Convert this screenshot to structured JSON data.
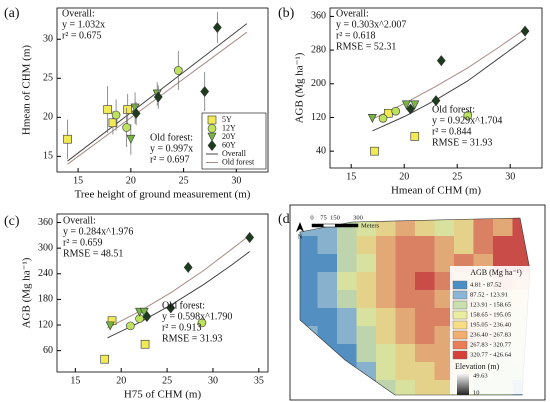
{
  "chart_data": [
    {
      "type": "scatter",
      "panel": "(a)",
      "xlabel": "Tree height of ground measurement (m)",
      "ylabel": "Hmean of CHM (m)",
      "xlim": [
        13,
        33
      ],
      "ylim": [
        13,
        34
      ],
      "xticks": [
        15,
        20,
        25,
        30
      ],
      "yticks": [
        15,
        20,
        25,
        30
      ],
      "legend": "lower right",
      "series": [
        {
          "name": "5Y",
          "color": "#f2ea55",
          "marker": "square",
          "x": [
            14,
            17.8,
            18.3,
            19.7
          ],
          "values": [
            17.2,
            21,
            19.3,
            21
          ],
          "errors": [
            2.5,
            3,
            1.5,
            2
          ]
        },
        {
          "name": "12Y",
          "color": "#bde25e",
          "marker": "circle",
          "x": [
            18.6,
            19.6,
            24.5
          ],
          "values": [
            20.3,
            18.7,
            26
          ],
          "errors": [
            2,
            2.5,
            2.5
          ]
        },
        {
          "name": "20Y",
          "color": "#79b447",
          "marker": "triangle",
          "x": [
            20,
            20.4,
            22.5
          ],
          "values": [
            17.2,
            21.2,
            23
          ],
          "errors": [
            2,
            2,
            1.5
          ]
        },
        {
          "name": "60Y",
          "color": "#1d3b1d",
          "marker": "diamond",
          "x": [
            20.5,
            22.6,
            27,
            28.2
          ],
          "values": [
            20.5,
            22.6,
            23.3,
            31.5
          ],
          "errors": [
            1.5,
            1.5,
            2.5,
            2
          ]
        }
      ],
      "fits": [
        {
          "name": "Overall",
          "color": "#444",
          "x": [
            14,
            31
          ],
          "values": [
            14.4,
            32
          ]
        },
        {
          "name": "Old forest",
          "color": "#a98b86",
          "x": [
            14,
            31
          ],
          "values": [
            14,
            30.9
          ]
        }
      ],
      "annotations": [
        "Overall:",
        "y = 1.032x",
        "r² = 0.675",
        "Old forest:",
        "y = 0.997x",
        "r² = 0.697"
      ]
    },
    {
      "type": "scatter",
      "panel": "(b)",
      "xlabel": "Hmean of CHM (m)",
      "ylabel": "AGB (Mg ha⁻¹)",
      "xlim": [
        13,
        33
      ],
      "ylim": [
        0,
        380
      ],
      "xticks": [
        15,
        20,
        25,
        30
      ],
      "yticks": [
        40,
        120,
        200,
        280,
        360
      ],
      "series": [
        {
          "name": "5Y",
          "color": "#f2ea55",
          "marker": "square",
          "x": [
            17.2,
            18.5,
            21
          ],
          "values": [
            40,
            130,
            75
          ]
        },
        {
          "name": "12Y",
          "color": "#bde25e",
          "marker": "circle",
          "x": [
            18,
            19.2,
            26
          ],
          "values": [
            118,
            135,
            125
          ]
        },
        {
          "name": "20Y",
          "color": "#79b447",
          "marker": "triangle",
          "x": [
            17,
            20.2,
            21
          ],
          "values": [
            118,
            150,
            150
          ]
        },
        {
          "name": "60Y",
          "color": "#1d3b1d",
          "marker": "diamond",
          "x": [
            20.6,
            23,
            23.5,
            31.4
          ],
          "values": [
            140,
            160,
            255,
            325
          ]
        }
      ],
      "fits": [
        {
          "name": "Overall",
          "color": "#444",
          "x": [
            17,
            20,
            23,
            26,
            29,
            31.5
          ],
          "values": [
            88,
            122,
            162,
            207,
            262,
            308
          ]
        },
        {
          "name": "Old forest",
          "color": "#a98b86",
          "x": [
            17,
            20,
            23,
            26,
            29,
            31.5
          ],
          "values": [
            116,
            153,
            194,
            238,
            288,
            332
          ]
        }
      ],
      "annotations": [
        "Overall:",
        "y = 0.303x^2.007",
        "r² = 0.618",
        "RMSE = 52.31",
        "Old forest:",
        "y = 0.929x^1.704",
        "r² = 0.844",
        "RMSE = 31.93"
      ]
    },
    {
      "type": "scatter",
      "panel": "(c)",
      "xlabel": "H75 of CHM (m)",
      "ylabel": "AGB (Mg ha⁻¹)",
      "xlim": [
        13,
        36
      ],
      "ylim": [
        10,
        380
      ],
      "xticks": [
        15,
        20,
        25,
        30,
        35
      ],
      "yticks": [
        60,
        120,
        180,
        240,
        300,
        360
      ],
      "series": [
        {
          "name": "5Y",
          "color": "#f2ea55",
          "marker": "square",
          "x": [
            18.2,
            19,
            22.6
          ],
          "values": [
            40,
            130,
            75
          ]
        },
        {
          "name": "12Y",
          "color": "#bde25e",
          "marker": "circle",
          "x": [
            21,
            22,
            28.8
          ],
          "values": [
            118,
            135,
            125
          ]
        },
        {
          "name": "20Y",
          "color": "#79b447",
          "marker": "triangle",
          "x": [
            18.8,
            22,
            22.5
          ],
          "values": [
            118,
            150,
            150
          ]
        },
        {
          "name": "60Y",
          "color": "#1d3b1d",
          "marker": "diamond",
          "x": [
            22.8,
            25.4,
            27.3,
            34
          ],
          "values": [
            140,
            160,
            255,
            325
          ]
        }
      ],
      "fits": [
        {
          "name": "Overall",
          "color": "#444",
          "x": [
            18.5,
            22,
            25.5,
            29,
            32,
            34
          ],
          "values": [
            90,
            126,
            168,
            215,
            260,
            292
          ]
        },
        {
          "name": "Old forest",
          "color": "#a98b86",
          "x": [
            18.5,
            22,
            25.5,
            29,
            32,
            34
          ],
          "values": [
            113,
            152,
            197,
            248,
            297,
            330
          ]
        }
      ],
      "annotations": [
        "Overall:",
        "y = 0.284x^1.976",
        "r² = 0.659",
        "RMSE = 48.51",
        "Old forest:",
        "y = 0.598x^1.790",
        "r² = 0.913",
        "RMSE = 31.93"
      ]
    }
  ],
  "map": {
    "panel": "(d)",
    "north": "N",
    "scale": [
      "0",
      "75",
      "150",
      "300",
      "Meters"
    ],
    "legend_title": "AGB (Mg ha⁻¹)",
    "classes": [
      {
        "label": "4.81   - 87.52",
        "color": "#4b8fc7"
      },
      {
        "label": "87.52  - 123.91",
        "color": "#8ab6d6"
      },
      {
        "label": "123.91 - 158.65",
        "color": "#c9dfae"
      },
      {
        "label": "158.65 - 195.05",
        "color": "#e9ee9e"
      },
      {
        "label": "195.05 - 236.40",
        "color": "#f6dd86"
      },
      {
        "label": "236.40 - 267.83",
        "color": "#f3ad6e"
      },
      {
        "label": "267.83 - 320.77",
        "color": "#ea7c58"
      },
      {
        "label": "320.77 - 426.64",
        "color": "#d63f38"
      }
    ],
    "elevation_title": "Elevation (m)",
    "elevation_max": "49.63",
    "elevation_min": "10"
  }
}
